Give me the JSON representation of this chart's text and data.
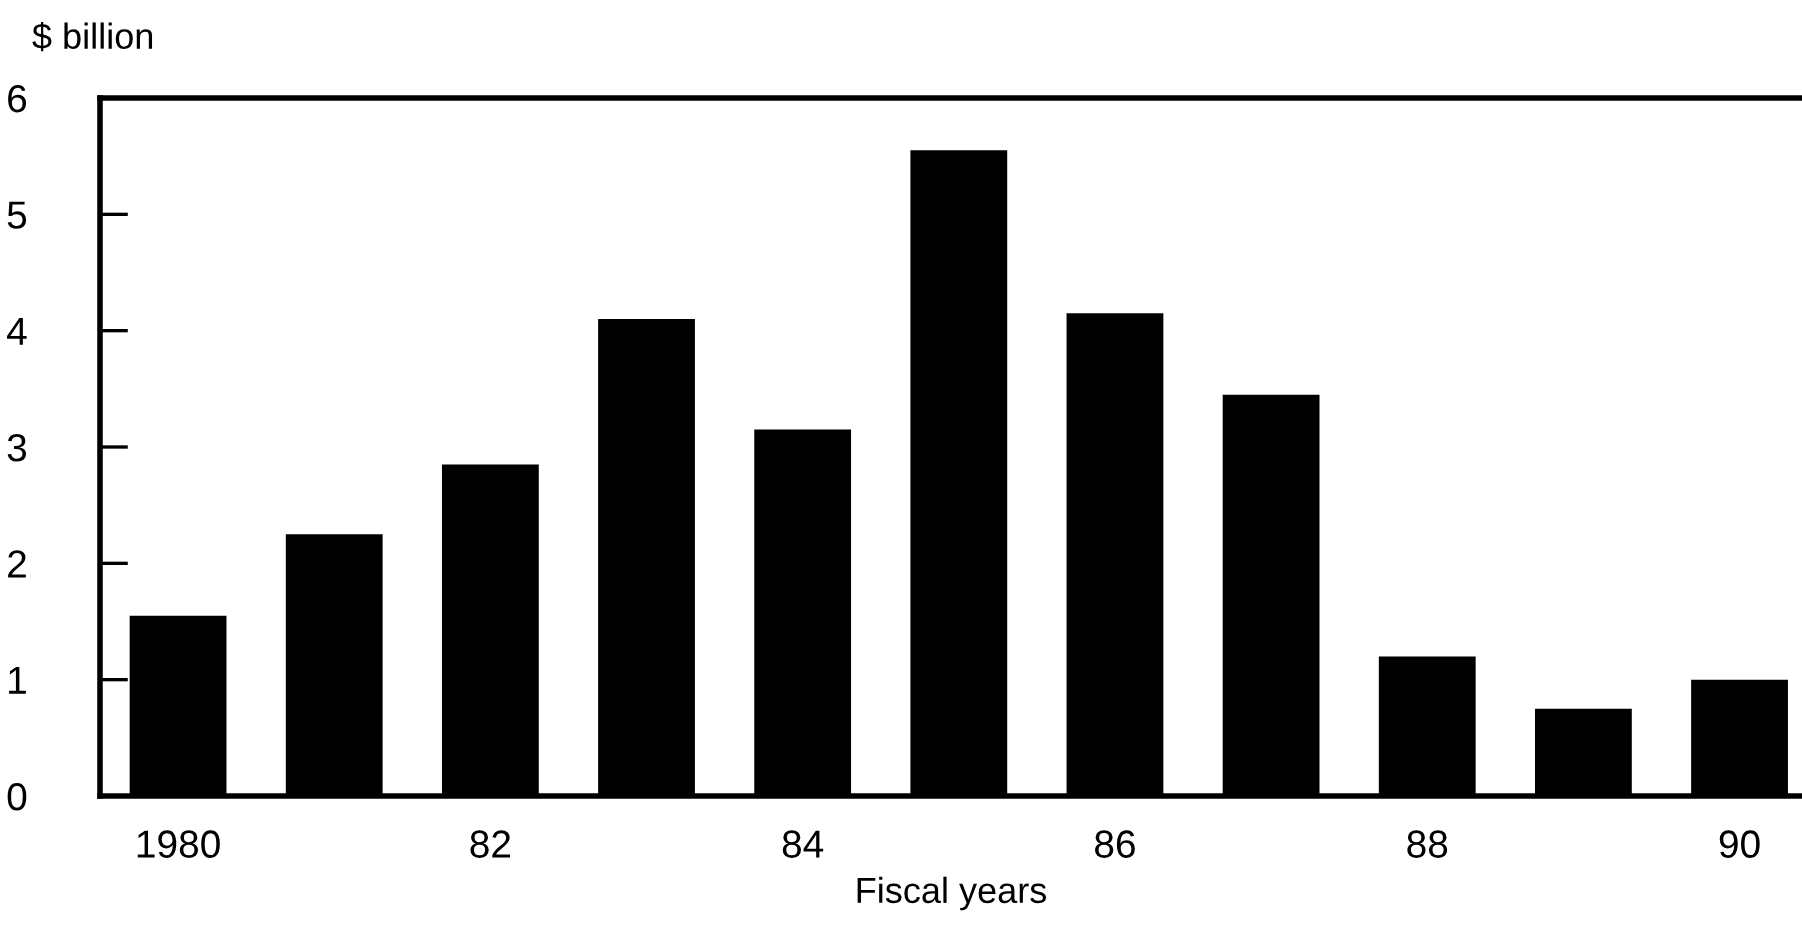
{
  "chart_data": {
    "type": "bar",
    "ylabel": "$ billion",
    "xlabel": "Fiscal years",
    "categories": [
      "1980",
      null,
      "82",
      null,
      "84",
      null,
      "86",
      null,
      "88",
      null,
      "90"
    ],
    "values": [
      1.55,
      2.25,
      2.85,
      4.1,
      3.15,
      5.55,
      4.15,
      3.45,
      1.2,
      0.75,
      1.0
    ],
    "color": "#000000",
    "ylim": [
      0,
      6
    ],
    "yticks": [
      0,
      1,
      2,
      3,
      4,
      5,
      6
    ],
    "grid": false,
    "legend": false
  }
}
